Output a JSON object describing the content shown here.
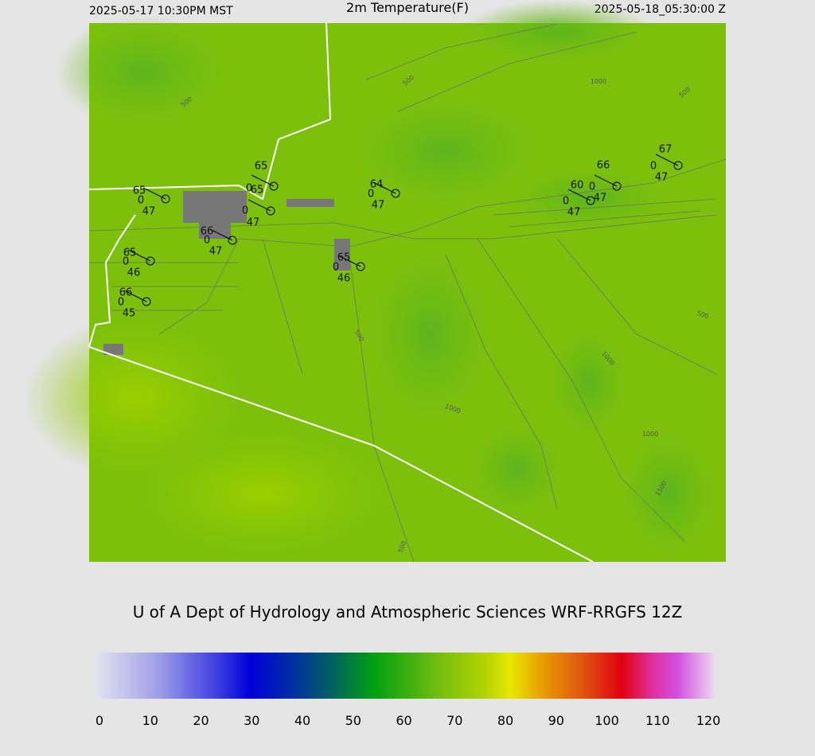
{
  "header": {
    "left": "2025-05-17 10:30PM MST",
    "title": "2m Temperature(F)",
    "right": "2025-05-18_05:30:00 Z"
  },
  "stations": [
    {
      "temp": 65,
      "wind": 0,
      "dew": 47
    },
    {
      "temp": 65,
      "wind": 0
    },
    {
      "temp": 65,
      "wind": 0,
      "dew": 47
    },
    {
      "temp": 66,
      "wind": 0,
      "dew": 47
    },
    {
      "temp": 64,
      "wind": 0,
      "dew": 47
    },
    {
      "temp": 65,
      "wind": 0,
      "dew": 46
    },
    {
      "temp": 65,
      "wind": 0,
      "dew": 46
    },
    {
      "temp": 66,
      "wind": 0,
      "dew": 45
    },
    {
      "temp": 60,
      "wind": 0,
      "dew": 47
    },
    {
      "temp": 66,
      "wind": 0,
      "dew": 47
    },
    {
      "temp": 67,
      "wind": 0,
      "dew": 47
    }
  ],
  "contour_labels": [
    "500",
    "500",
    "1000",
    "500",
    "500",
    "1000",
    "1000",
    "1000",
    "1500",
    "500",
    "500"
  ],
  "credit": "U of A Dept of Hydrology and Atmospheric Sciences WRF-RRGFS 12Z",
  "colorbar": {
    "ticks": [
      0,
      10,
      20,
      30,
      40,
      50,
      60,
      70,
      80,
      90,
      100,
      110,
      120
    ]
  }
}
